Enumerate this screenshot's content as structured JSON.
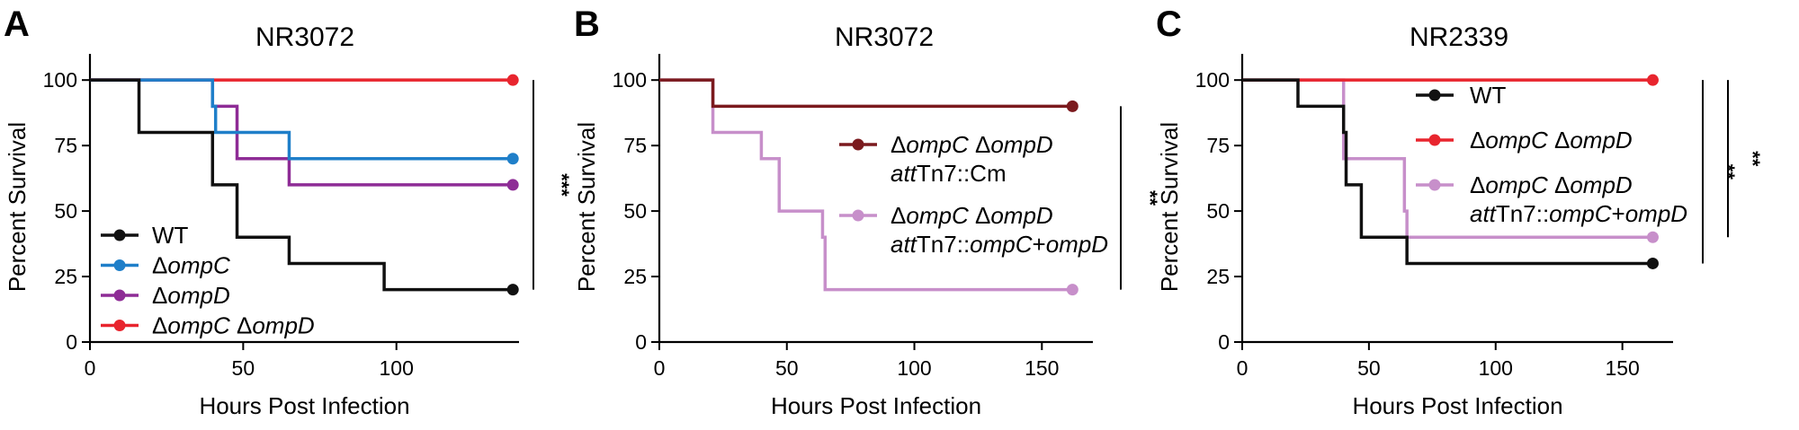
{
  "chart_data": [
    {
      "type": "line",
      "subtype": "kaplan-meier step",
      "panel_letter": "A",
      "title": "NR3072",
      "xlabel": "Hours Post Infection",
      "ylabel": "Percent Survival",
      "xlim": [
        0,
        140
      ],
      "ylim": [
        0,
        110
      ],
      "x_ticks": [
        0,
        50,
        100
      ],
      "y_ticks": [
        0,
        25,
        50,
        75,
        100
      ],
      "grid": false,
      "legend_position": "bottom-left",
      "series": [
        {
          "color": "#111111",
          "legend_parts": [
            {
              "t": "WT",
              "i": false
            }
          ],
          "steps": [
            [
              0,
              100
            ],
            [
              16,
              80
            ],
            [
              40,
              60
            ],
            [
              48,
              40
            ],
            [
              65,
              30
            ],
            [
              96,
              20
            ],
            [
              138,
              20
            ]
          ]
        },
        {
          "color": "#1f7fc9",
          "legend_parts": [
            {
              "t": "Δ",
              "i": false
            },
            {
              "t": "ompC",
              "i": true
            }
          ],
          "steps": [
            [
              0,
              100
            ],
            [
              40,
              90
            ],
            [
              41,
              80
            ],
            [
              65,
              70
            ],
            [
              138,
              70
            ]
          ]
        },
        {
          "color": "#8e2c96",
          "legend_parts": [
            {
              "t": "Δ",
              "i": false
            },
            {
              "t": "ompD",
              "i": true
            }
          ],
          "steps": [
            [
              0,
              100
            ],
            [
              40,
              90
            ],
            [
              48,
              70
            ],
            [
              65,
              60
            ],
            [
              138,
              60
            ]
          ]
        },
        {
          "color": "#e8252e",
          "legend_parts": [
            {
              "t": "Δ",
              "i": false
            },
            {
              "t": "ompC",
              "i": true
            },
            {
              "t": " Δ",
              "i": false
            },
            {
              "t": "ompD",
              "i": true
            }
          ],
          "steps": [
            [
              0,
              100
            ],
            [
              138,
              100
            ]
          ]
        }
      ],
      "significance": [
        {
          "label": "***",
          "y_from": 20,
          "y_to": 100
        }
      ]
    },
    {
      "type": "line",
      "subtype": "kaplan-meier step",
      "panel_letter": "B",
      "title": "NR3072",
      "xlabel": "Hours Post Infection",
      "ylabel": "Percent Survival",
      "xlim": [
        0,
        170
      ],
      "ylim": [
        0,
        110
      ],
      "x_ticks": [
        0,
        50,
        100,
        150
      ],
      "y_ticks": [
        0,
        25,
        50,
        75,
        100
      ],
      "grid": false,
      "legend_position": "center-right",
      "series": [
        {
          "color": "#7b1a1e",
          "legend_parts": [
            {
              "t": "Δ",
              "i": false
            },
            {
              "t": "ompC",
              "i": true
            },
            {
              "t": " Δ",
              "i": false
            },
            {
              "t": "ompD",
              "i": true
            }
          ],
          "legend_parts_line2": [
            {
              "t": "att",
              "i": true
            },
            {
              "t": "Tn7::Cm",
              "i": false
            }
          ],
          "steps": [
            [
              0,
              100
            ],
            [
              21,
              90
            ],
            [
              162,
              90
            ]
          ]
        },
        {
          "color": "#c78fca",
          "legend_parts": [
            {
              "t": "Δ",
              "i": false
            },
            {
              "t": "ompC",
              "i": true
            },
            {
              "t": " Δ",
              "i": false
            },
            {
              "t": "ompD",
              "i": true
            }
          ],
          "legend_parts_line2": [
            {
              "t": "att",
              "i": true
            },
            {
              "t": "Tn7::",
              "i": false
            },
            {
              "t": "ompC",
              "i": true
            },
            {
              "t": "+",
              "i": false
            },
            {
              "t": "ompD",
              "i": true
            }
          ],
          "steps": [
            [
              0,
              100
            ],
            [
              21,
              80
            ],
            [
              40,
              70
            ],
            [
              47,
              50
            ],
            [
              64,
              40
            ],
            [
              65,
              20
            ],
            [
              162,
              20
            ]
          ]
        }
      ],
      "significance": [
        {
          "label": "**",
          "y_from": 20,
          "y_to": 90
        }
      ]
    },
    {
      "type": "line",
      "subtype": "kaplan-meier step",
      "panel_letter": "C",
      "title": "NR2339",
      "xlabel": "Hours Post Infection",
      "ylabel": "Percent Survival",
      "xlim": [
        0,
        170
      ],
      "ylim": [
        0,
        110
      ],
      "x_ticks": [
        0,
        50,
        100,
        150
      ],
      "y_ticks": [
        0,
        25,
        50,
        75,
        100
      ],
      "grid": false,
      "legend_position": "top-right",
      "series": [
        {
          "color": "#111111",
          "legend_parts": [
            {
              "t": "WT",
              "i": false
            }
          ],
          "steps": [
            [
              0,
              100
            ],
            [
              22,
              90
            ],
            [
              40,
              80
            ],
            [
              41,
              60
            ],
            [
              47,
              40
            ],
            [
              65,
              30
            ],
            [
              162,
              30
            ]
          ]
        },
        {
          "color": "#e8252e",
          "legend_parts": [
            {
              "t": "Δ",
              "i": false
            },
            {
              "t": "ompC",
              "i": true
            },
            {
              "t": " Δ",
              "i": false
            },
            {
              "t": "ompD",
              "i": true
            }
          ],
          "steps": [
            [
              0,
              100
            ],
            [
              162,
              100
            ]
          ]
        },
        {
          "color": "#c78fca",
          "legend_parts": [
            {
              "t": "Δ",
              "i": false
            },
            {
              "t": "ompC",
              "i": true
            },
            {
              "t": " Δ",
              "i": false
            },
            {
              "t": "ompD",
              "i": true
            }
          ],
          "legend_parts_line2": [
            {
              "t": "att",
              "i": true
            },
            {
              "t": "Tn7::",
              "i": false
            },
            {
              "t": "ompC",
              "i": true
            },
            {
              "t": "+",
              "i": false
            },
            {
              "t": "ompD",
              "i": true
            }
          ],
          "steps": [
            [
              0,
              100
            ],
            [
              40,
              70
            ],
            [
              64,
              50
            ],
            [
              65,
              40
            ],
            [
              162,
              40
            ]
          ]
        }
      ],
      "significance": [
        {
          "label": "**",
          "y_from": 30,
          "y_to": 100
        },
        {
          "label": "**",
          "y_from": 40,
          "y_to": 100
        }
      ]
    }
  ]
}
